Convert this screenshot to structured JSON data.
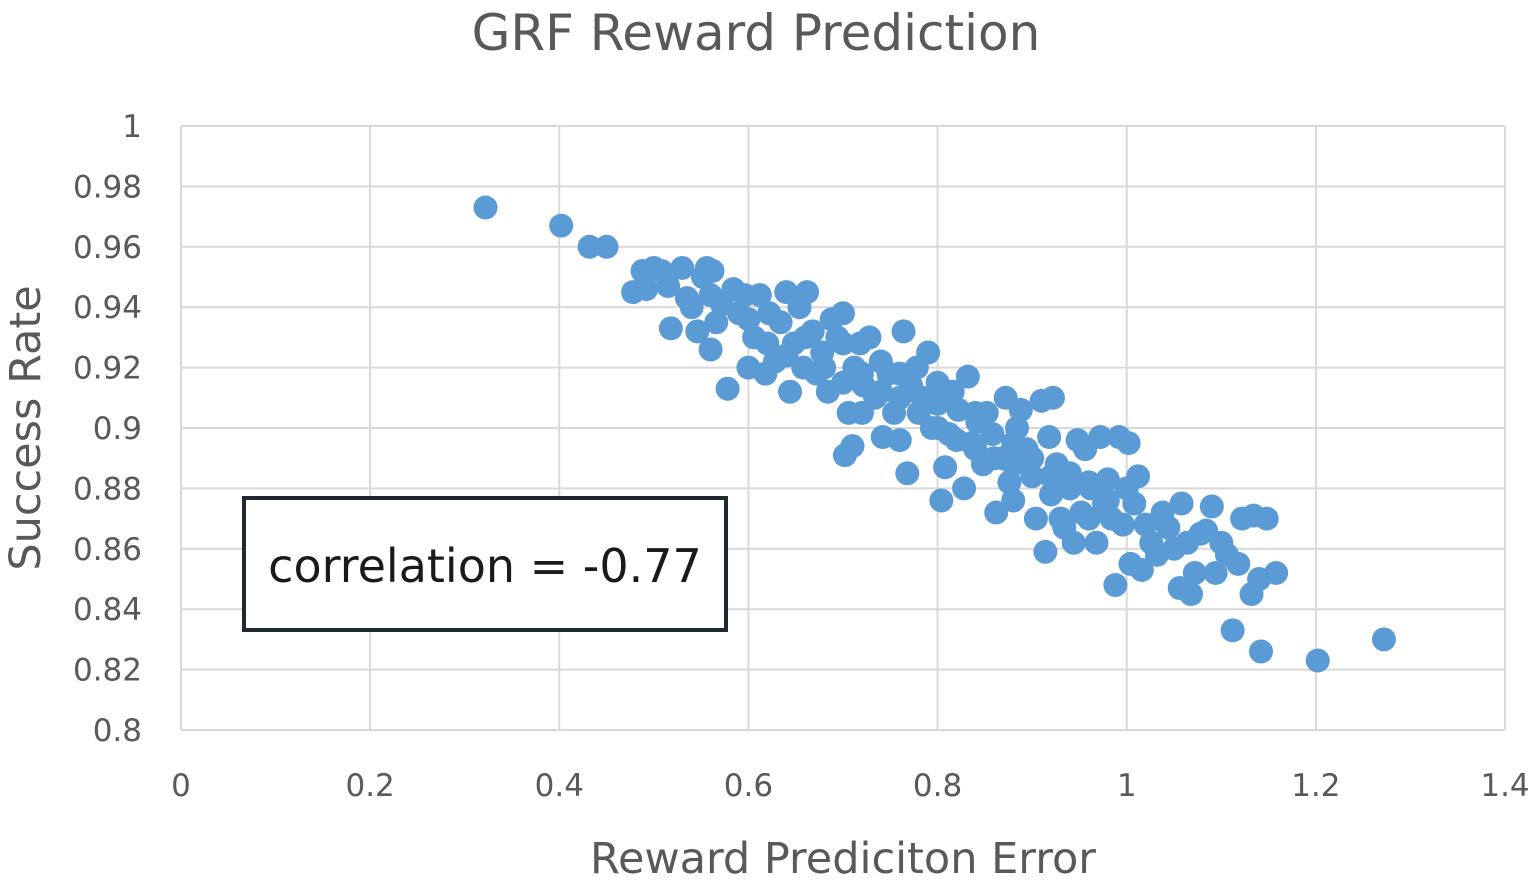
{
  "chart_data": {
    "type": "scatter",
    "title": "GRF Reward Prediction",
    "xlabel": "Reward Prediciton Error",
    "ylabel": "Success Rate",
    "xlim": [
      0,
      1.4
    ],
    "ylim": [
      0.8,
      1.0
    ],
    "xticks": [
      0,
      0.2,
      0.4,
      0.6,
      0.8,
      1.0,
      1.2,
      1.4
    ],
    "xtick_labels": [
      "0",
      "0.2",
      "0.4",
      "0.6",
      "0.8",
      "1",
      "1.2",
      "1.4"
    ],
    "yticks": [
      0.8,
      0.82,
      0.84,
      0.86,
      0.88,
      0.9,
      0.92,
      0.94,
      0.96,
      0.98,
      1.0
    ],
    "ytick_labels": [
      "0.8",
      "0.82",
      "0.84",
      "0.86",
      "0.88",
      "0.9",
      "0.92",
      "0.94",
      "0.96",
      "0.98",
      "1"
    ],
    "grid": true,
    "legend": null,
    "annotation": "correlation = -0.77",
    "marker_color": "#5b9bd5",
    "points": [
      [
        0.322,
        0.973
      ],
      [
        0.402,
        0.967
      ],
      [
        0.432,
        0.96
      ],
      [
        0.45,
        0.96
      ],
      [
        0.478,
        0.945
      ],
      [
        0.488,
        0.952
      ],
      [
        0.492,
        0.946
      ],
      [
        0.5,
        0.953
      ],
      [
        0.508,
        0.952
      ],
      [
        0.515,
        0.947
      ],
      [
        0.518,
        0.933
      ],
      [
        0.53,
        0.953
      ],
      [
        0.535,
        0.943
      ],
      [
        0.54,
        0.94
      ],
      [
        0.546,
        0.932
      ],
      [
        0.552,
        0.95
      ],
      [
        0.556,
        0.953
      ],
      [
        0.562,
        0.952
      ],
      [
        0.56,
        0.926
      ],
      [
        0.566,
        0.935
      ],
      [
        0.572,
        0.941
      ],
      [
        0.578,
        0.913
      ],
      [
        0.584,
        0.946
      ],
      [
        0.59,
        0.938
      ],
      [
        0.596,
        0.944
      ],
      [
        0.6,
        0.92
      ],
      [
        0.606,
        0.93
      ],
      [
        0.612,
        0.944
      ],
      [
        0.618,
        0.918
      ],
      [
        0.622,
        0.938
      ],
      [
        0.628,
        0.922
      ],
      [
        0.634,
        0.935
      ],
      [
        0.64,
        0.945
      ],
      [
        0.644,
        0.912
      ],
      [
        0.648,
        0.928
      ],
      [
        0.654,
        0.94
      ],
      [
        0.658,
        0.92
      ],
      [
        0.662,
        0.945
      ],
      [
        0.668,
        0.932
      ],
      [
        0.672,
        0.918
      ],
      [
        0.678,
        0.925
      ],
      [
        0.684,
        0.912
      ],
      [
        0.688,
        0.936
      ],
      [
        0.694,
        0.93
      ],
      [
        0.7,
        0.938
      ],
      [
        0.702,
        0.891
      ],
      [
        0.706,
        0.905
      ],
      [
        0.71,
        0.894
      ],
      [
        0.712,
        0.92
      ],
      [
        0.718,
        0.928
      ],
      [
        0.722,
        0.914
      ],
      [
        0.728,
        0.93
      ],
      [
        0.734,
        0.91
      ],
      [
        0.74,
        0.922
      ],
      [
        0.742,
        0.897
      ],
      [
        0.748,
        0.918
      ],
      [
        0.754,
        0.905
      ],
      [
        0.76,
        0.896
      ],
      [
        0.764,
        0.932
      ],
      [
        0.768,
        0.885
      ],
      [
        0.772,
        0.914
      ],
      [
        0.778,
        0.92
      ],
      [
        0.784,
        0.91
      ],
      [
        0.79,
        0.925
      ],
      [
        0.794,
        0.9
      ],
      [
        0.8,
        0.908
      ],
      [
        0.804,
        0.876
      ],
      [
        0.808,
        0.887
      ],
      [
        0.812,
        0.898
      ],
      [
        0.816,
        0.912
      ],
      [
        0.822,
        0.906
      ],
      [
        0.828,
        0.88
      ],
      [
        0.832,
        0.917
      ],
      [
        0.836,
        0.895
      ],
      [
        0.842,
        0.902
      ],
      [
        0.848,
        0.888
      ],
      [
        0.852,
        0.905
      ],
      [
        0.858,
        0.898
      ],
      [
        0.862,
        0.872
      ],
      [
        0.868,
        0.89
      ],
      [
        0.872,
        0.91
      ],
      [
        0.876,
        0.882
      ],
      [
        0.88,
        0.876
      ],
      [
        0.884,
        0.9
      ],
      [
        0.888,
        0.906
      ],
      [
        0.894,
        0.893
      ],
      [
        0.9,
        0.884
      ],
      [
        0.904,
        0.87
      ],
      [
        0.91,
        0.909
      ],
      [
        0.914,
        0.859
      ],
      [
        0.918,
        0.897
      ],
      [
        0.922,
        0.91
      ],
      [
        0.926,
        0.888
      ],
      [
        0.93,
        0.87
      ],
      [
        0.934,
        0.867
      ],
      [
        0.94,
        0.885
      ],
      [
        0.944,
        0.862
      ],
      [
        0.948,
        0.896
      ],
      [
        0.952,
        0.872
      ],
      [
        0.956,
        0.893
      ],
      [
        0.962,
        0.88
      ],
      [
        0.968,
        0.862
      ],
      [
        0.972,
        0.897
      ],
      [
        0.976,
        0.875
      ],
      [
        0.98,
        0.883
      ],
      [
        0.984,
        0.87
      ],
      [
        0.988,
        0.848
      ],
      [
        0.992,
        0.897
      ],
      [
        0.996,
        0.868
      ],
      [
        1.0,
        0.88
      ],
      [
        1.002,
        0.895
      ],
      [
        1.004,
        0.855
      ],
      [
        1.008,
        0.875
      ],
      [
        1.012,
        0.884
      ],
      [
        1.016,
        0.853
      ],
      [
        1.02,
        0.868
      ],
      [
        1.026,
        0.862
      ],
      [
        1.032,
        0.858
      ],
      [
        1.038,
        0.872
      ],
      [
        1.044,
        0.867
      ],
      [
        1.05,
        0.86
      ],
      [
        1.056,
        0.847
      ],
      [
        1.058,
        0.875
      ],
      [
        1.064,
        0.862
      ],
      [
        1.068,
        0.845
      ],
      [
        1.072,
        0.852
      ],
      [
        1.078,
        0.865
      ],
      [
        1.084,
        0.866
      ],
      [
        1.09,
        0.874
      ],
      [
        1.094,
        0.852
      ],
      [
        1.1,
        0.862
      ],
      [
        1.106,
        0.858
      ],
      [
        1.112,
        0.833
      ],
      [
        1.118,
        0.855
      ],
      [
        1.122,
        0.87
      ],
      [
        1.132,
        0.845
      ],
      [
        1.134,
        0.871
      ],
      [
        1.14,
        0.85
      ],
      [
        1.142,
        0.826
      ],
      [
        1.148,
        0.87
      ],
      [
        1.158,
        0.852
      ],
      [
        1.202,
        0.823
      ],
      [
        1.272,
        0.83
      ],
      [
        0.56,
        0.944
      ],
      [
        0.6,
        0.936
      ],
      [
        0.62,
        0.928
      ],
      [
        0.64,
        0.924
      ],
      [
        0.66,
        0.93
      ],
      [
        0.68,
        0.92
      ],
      [
        0.7,
        0.915
      ],
      [
        0.72,
        0.918
      ],
      [
        0.74,
        0.912
      ],
      [
        0.76,
        0.91
      ],
      [
        0.78,
        0.905
      ],
      [
        0.8,
        0.9
      ],
      [
        0.82,
        0.896
      ],
      [
        0.84,
        0.893
      ],
      [
        0.86,
        0.89
      ],
      [
        0.88,
        0.888
      ],
      [
        0.9,
        0.89
      ],
      [
        0.92,
        0.884
      ],
      [
        0.94,
        0.88
      ],
      [
        0.96,
        0.882
      ],
      [
        0.98,
        0.876
      ],
      [
        0.7,
        0.928
      ],
      [
        0.72,
        0.905
      ],
      [
        0.76,
        0.918
      ],
      [
        0.8,
        0.915
      ],
      [
        0.84,
        0.905
      ],
      [
        0.88,
        0.895
      ],
      [
        0.92,
        0.878
      ],
      [
        0.96,
        0.87
      ]
    ]
  }
}
